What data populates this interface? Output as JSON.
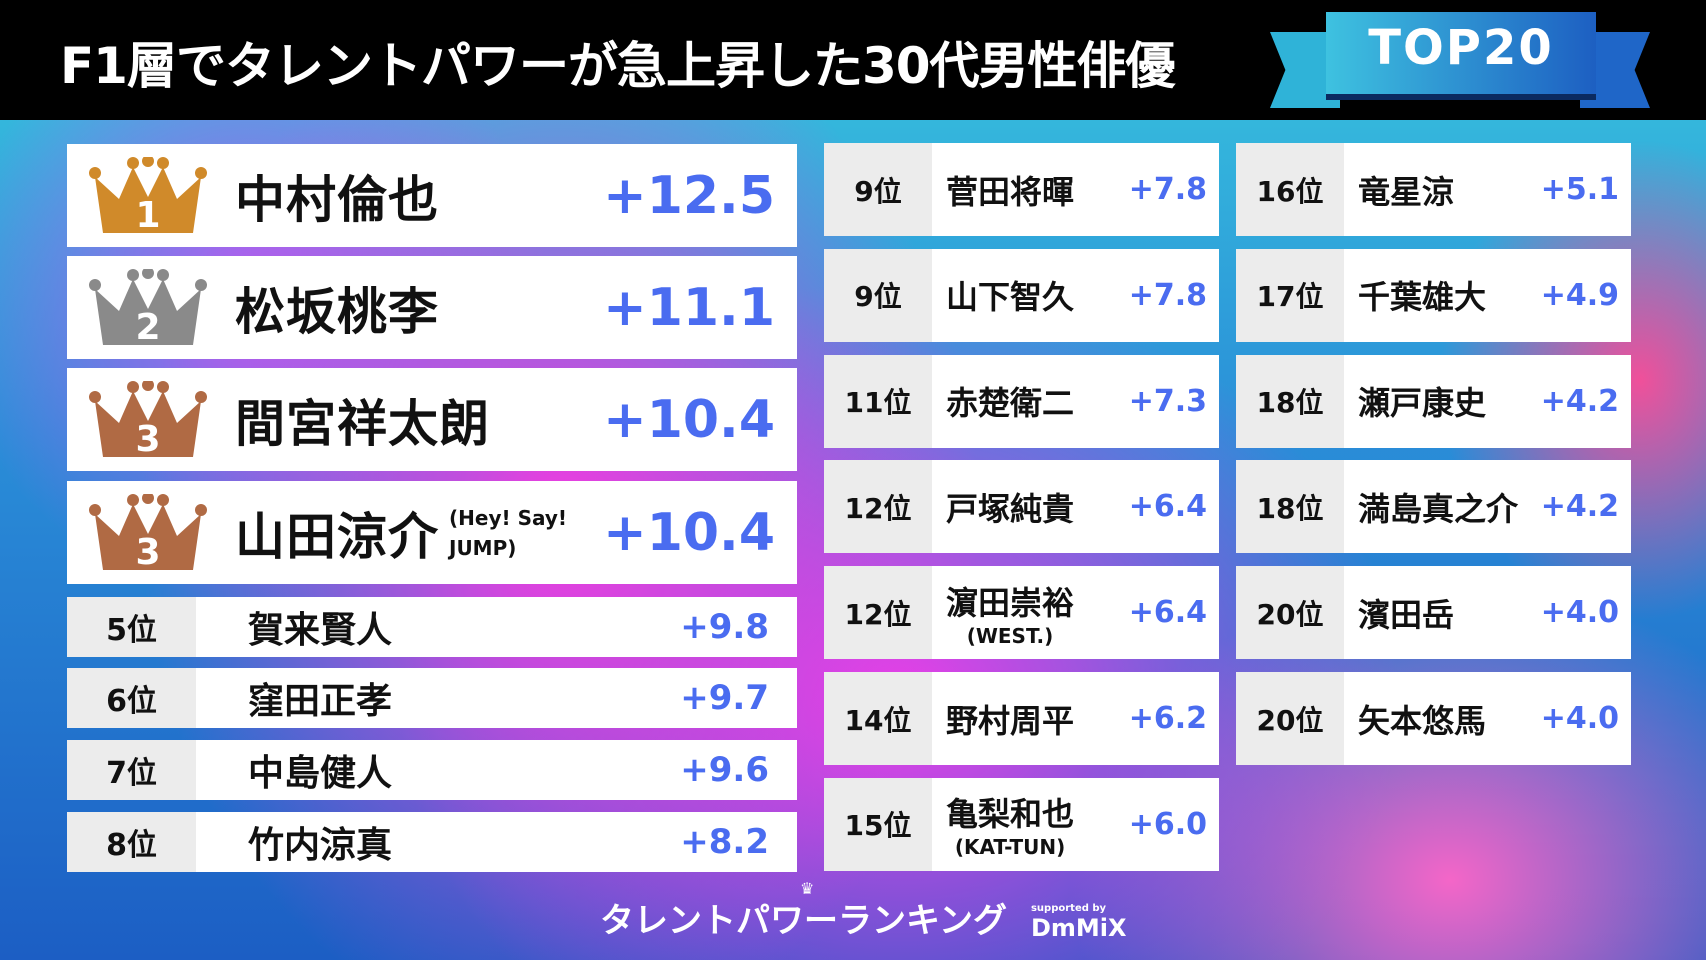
{
  "header": {
    "title": "F1層でタレントパワーが急上昇した30代男性俳優",
    "badge": "TOP20"
  },
  "colors": {
    "gold": "#d08a2a",
    "silver": "#8a8a8a",
    "bronze": "#b06a44",
    "score": "#4a6cf0"
  },
  "top": [
    {
      "rank": "1",
      "name": "中村倫也",
      "note": "",
      "score": "+12.5",
      "crown": "gold"
    },
    {
      "rank": "2",
      "name": "松坂桃李",
      "note": "",
      "score": "+11.1",
      "crown": "silver"
    },
    {
      "rank": "3",
      "name": "間宮祥太朗",
      "note": "",
      "score": "+10.4",
      "crown": "bronze"
    },
    {
      "rank": "3",
      "name": "山田涼介",
      "note": "(Hey! Say! JUMP)",
      "score": "+10.4",
      "crown": "bronze"
    }
  ],
  "mid": [
    {
      "rank": "5位",
      "name": "賀来賢人",
      "score": "+9.8"
    },
    {
      "rank": "6位",
      "name": "窪田正孝",
      "score": "+9.7"
    },
    {
      "rank": "7位",
      "name": "中島健人",
      "score": "+9.6"
    },
    {
      "rank": "8位",
      "name": "竹内涼真",
      "score": "+8.2"
    }
  ],
  "col2": [
    {
      "rank": "9位",
      "name": "菅田将暉",
      "note": "",
      "score": "+7.8"
    },
    {
      "rank": "9位",
      "name": "山下智久",
      "note": "",
      "score": "+7.8"
    },
    {
      "rank": "11位",
      "name": "赤楚衛二",
      "note": "",
      "score": "+7.3"
    },
    {
      "rank": "12位",
      "name": "戸塚純貴",
      "note": "",
      "score": "+6.4"
    },
    {
      "rank": "12位",
      "name": "濵田崇裕",
      "note": "(WEST.)",
      "score": "+6.4"
    },
    {
      "rank": "14位",
      "name": "野村周平",
      "note": "",
      "score": "+6.2"
    },
    {
      "rank": "15位",
      "name": "亀梨和也",
      "note": "(KAT-TUN)",
      "score": "+6.0"
    }
  ],
  "col3": [
    {
      "rank": "16位",
      "name": "竜星涼",
      "note": "",
      "score": "+5.1"
    },
    {
      "rank": "17位",
      "name": "千葉雄大",
      "note": "",
      "score": "+4.9"
    },
    {
      "rank": "18位",
      "name": "瀬戸康史",
      "note": "",
      "score": "+4.2"
    },
    {
      "rank": "18位",
      "name": "満島真之介",
      "note": "",
      "score": "+4.2"
    },
    {
      "rank": "20位",
      "name": "濱田岳",
      "note": "",
      "score": "+4.0"
    },
    {
      "rank": "20位",
      "name": "矢本悠馬",
      "note": "",
      "score": "+4.0"
    }
  ],
  "footer": {
    "logo": "タレントパワーランキング",
    "supported": "supported by",
    "brand": "DmMiX"
  }
}
